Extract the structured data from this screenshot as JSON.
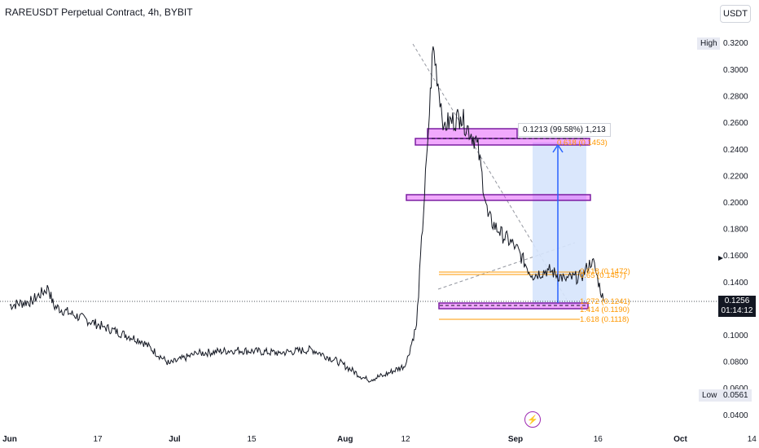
{
  "header": {
    "title": "RAREUSDT Perpetual Contract, 4h, BYBIT",
    "currency_button": "USDT"
  },
  "price_axis": {
    "high_label": "High",
    "high_value": "0.3200",
    "low_label": "Low",
    "low_value": "0.0561",
    "current_price": "0.1256",
    "countdown": "01:14:12"
  },
  "measure_label": "0.1213 (99.58%) 1,213",
  "fib_labels": {
    "top": "0.618 (0.1453)",
    "mid_a": "0.618 (0.1472)",
    "mid_b": "0.65 (0.1457)",
    "low_a": "1.272 (0.1241)",
    "low_b": "1.414 (0.1190)",
    "low_c": "1.618 (0.1118)"
  },
  "colors": {
    "candle": "#131722",
    "zone_fill": "#e040fb",
    "zone_stroke": "#7b1fa2",
    "fib": "#ff9800",
    "measure_fill": "#d6e4fc",
    "measure_arrow": "#2962ff",
    "trendline": "#9598a1"
  },
  "logo_icon": "tradingview-flash-icon",
  "chart_data": {
    "type": "line",
    "title": "RAREUSDT Perpetual Contract, 4h, BYBIT",
    "xlabel": "",
    "ylabel": "",
    "ylim": [
      0.035,
      0.33
    ],
    "yticks": [
      "0.3000",
      "0.2800",
      "0.2600",
      "0.2400",
      "0.2200",
      "0.2000",
      "0.1800",
      "0.1600",
      "0.1400",
      "0.1000",
      "0.0800",
      "0.0600",
      "0.0400"
    ],
    "xticks": [
      "Jun",
      "17",
      "Jul",
      "15",
      "Aug",
      "12",
      "Sep",
      "16",
      "Oct",
      "14"
    ],
    "grid": false,
    "series": [
      {
        "x": [
          "Jun 1",
          "Jun 5",
          "Jun 8",
          "Jun 9",
          "Jun 12",
          "Jun 18",
          "Jun 25",
          "Jun 30",
          "Jul 5",
          "Jul 12",
          "Jul 20",
          "Jul 26",
          "Jul 31",
          "Aug 5",
          "Aug 8",
          "Aug 12",
          "Aug 14",
          "Aug 16",
          "Aug 17",
          "Aug 19",
          "Aug 22",
          "Aug 25",
          "Aug 27",
          "Aug 29",
          "Sep 1",
          "Sep 4",
          "Sep 7",
          "Sep 10",
          "Sep 13",
          "Sep 15",
          "Sep 17"
        ],
        "values": [
          0.1222,
          0.1255,
          0.1354,
          0.1216,
          0.1161,
          0.1061,
          0.0954,
          0.0782,
          0.0859,
          0.0885,
          0.0864,
          0.0889,
          0.0792,
          0.066,
          0.0694,
          0.0771,
          0.1074,
          0.2432,
          0.3172,
          0.2578,
          0.2643,
          0.2449,
          0.1889,
          0.1775,
          0.1664,
          0.1446,
          0.1489,
          0.142,
          0.1438,
          0.1568,
          0.1256
        ]
      }
    ]
  }
}
